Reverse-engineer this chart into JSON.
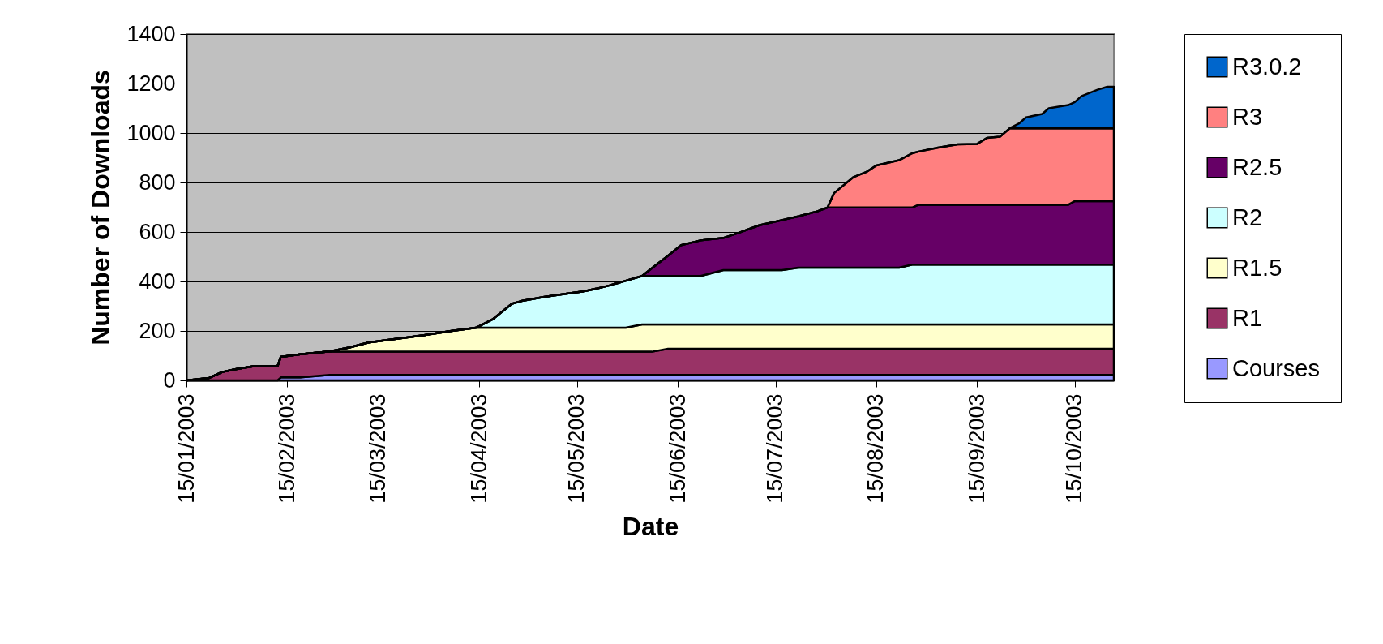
{
  "chart_data": {
    "type": "area",
    "stacked": true,
    "xlabel": "Date",
    "ylabel": "Number of Downloads",
    "ylim": [
      0,
      1400
    ],
    "yticks": [
      0,
      200,
      400,
      600,
      800,
      1000,
      1200,
      1400
    ],
    "xlim": [
      "2003-01-15",
      "2003-10-27"
    ],
    "xticks": [
      {
        "value": "2003-01-15",
        "label": "15/01/2003"
      },
      {
        "value": "2003-02-15",
        "label": "15/02/2003"
      },
      {
        "value": "2003-03-15",
        "label": "15/03/2003"
      },
      {
        "value": "2003-04-15",
        "label": "15/04/2003"
      },
      {
        "value": "2003-05-15",
        "label": "15/05/2003"
      },
      {
        "value": "2003-06-15",
        "label": "15/06/2003"
      },
      {
        "value": "2003-07-15",
        "label": "15/07/2003"
      },
      {
        "value": "2003-08-15",
        "label": "15/08/2003"
      },
      {
        "value": "2003-09-15",
        "label": "15/09/2003"
      },
      {
        "value": "2003-10-15",
        "label": "15/10/2003"
      }
    ],
    "grid": "y",
    "legend": "right",
    "x": [
      "2003-01-15",
      "2003-01-22",
      "2003-01-26",
      "2003-01-30",
      "2003-02-05",
      "2003-02-12",
      "2003-02-13",
      "2003-02-19",
      "2003-02-28",
      "2003-03-06",
      "2003-03-12",
      "2003-03-20",
      "2003-03-29",
      "2003-04-06",
      "2003-04-14",
      "2003-04-19",
      "2003-04-25",
      "2003-04-28",
      "2003-05-05",
      "2003-05-11",
      "2003-05-17",
      "2003-05-21",
      "2003-05-25",
      "2003-05-30",
      "2003-06-04",
      "2003-06-07",
      "2003-06-12",
      "2003-06-16",
      "2003-06-22",
      "2003-06-29",
      "2003-07-04",
      "2003-07-10",
      "2003-07-17",
      "2003-07-22",
      "2003-07-28",
      "2003-07-31",
      "2003-08-02",
      "2003-08-08",
      "2003-08-12",
      "2003-08-15",
      "2003-08-22",
      "2003-08-26",
      "2003-08-28",
      "2003-09-03",
      "2003-09-09",
      "2003-09-15",
      "2003-09-18",
      "2003-09-22",
      "2003-09-25",
      "2003-09-28",
      "2003-09-30",
      "2003-10-05",
      "2003-10-07",
      "2003-10-13",
      "2003-10-15",
      "2003-10-17",
      "2003-10-22",
      "2003-10-25",
      "2003-10-27"
    ],
    "series": [
      {
        "name": "Courses",
        "color": "#9999ff",
        "values": [
          0,
          0,
          0,
          0,
          0,
          0,
          12,
          12,
          22,
          22,
          22,
          22,
          22,
          22,
          22,
          22,
          22,
          22,
          22,
          22,
          22,
          22,
          22,
          22,
          22,
          22,
          22,
          22,
          22,
          22,
          22,
          22,
          22,
          22,
          22,
          22,
          22,
          22,
          22,
          22,
          22,
          22,
          22,
          22,
          22,
          22,
          22,
          22,
          22,
          22,
          22,
          22,
          22,
          22,
          22,
          22,
          22,
          22,
          22
        ]
      },
      {
        "name": "R1",
        "color": "#993366",
        "values": [
          0,
          10,
          34,
          45,
          58,
          58,
          83,
          94,
          95,
          94,
          94,
          94,
          94,
          94,
          94,
          94,
          94,
          94,
          94,
          94,
          94,
          94,
          94,
          94,
          94,
          94,
          106,
          106,
          106,
          106,
          106,
          106,
          106,
          106,
          106,
          106,
          106,
          106,
          106,
          106,
          106,
          106,
          106,
          106,
          106,
          106,
          106,
          106,
          106,
          106,
          106,
          106,
          106,
          106,
          106,
          106,
          106,
          106,
          106
        ]
      },
      {
        "name": "R1.5",
        "color": "#ffffcc",
        "values": [
          0,
          0,
          0,
          0,
          0,
          0,
          0,
          0,
          0,
          17,
          37,
          51,
          67,
          83,
          97,
          97,
          97,
          97,
          97,
          97,
          97,
          97,
          97,
          97,
          110,
          110,
          98,
          98,
          98,
          98,
          98,
          98,
          98,
          98,
          98,
          98,
          98,
          98,
          98,
          98,
          98,
          98,
          98,
          98,
          98,
          98,
          98,
          98,
          98,
          98,
          98,
          98,
          98,
          98,
          98,
          98,
          98,
          98,
          98
        ]
      },
      {
        "name": "R2",
        "color": "#ccffff",
        "values": [
          0,
          0,
          0,
          0,
          0,
          0,
          0,
          0,
          0,
          0,
          0,
          0,
          0,
          0,
          0,
          33,
          97,
          108,
          125,
          136,
          147,
          158,
          171,
          190,
          196,
          196,
          196,
          196,
          196,
          220,
          220,
          220,
          220,
          230,
          230,
          230,
          230,
          230,
          230,
          230,
          230,
          242,
          242,
          242,
          242,
          242,
          242,
          242,
          242,
          242,
          242,
          242,
          242,
          242,
          242,
          242,
          242,
          242,
          242
        ]
      },
      {
        "name": "R2.5",
        "color": "#660066",
        "values": [
          0,
          0,
          0,
          0,
          0,
          0,
          0,
          0,
          0,
          0,
          0,
          0,
          0,
          0,
          0,
          0,
          0,
          0,
          0,
          0,
          0,
          0,
          0,
          0,
          0,
          31,
          82,
          125,
          144,
          130,
          152,
          181,
          202,
          207,
          228,
          243,
          243,
          243,
          243,
          243,
          243,
          231,
          242,
          242,
          242,
          242,
          242,
          242,
          242,
          242,
          242,
          242,
          242,
          242,
          257,
          257,
          257,
          257,
          257
        ]
      },
      {
        "name": "R3",
        "color": "#ff8080",
        "values": [
          0,
          0,
          0,
          0,
          0,
          0,
          0,
          0,
          0,
          0,
          0,
          0,
          0,
          0,
          0,
          0,
          0,
          0,
          0,
          0,
          0,
          0,
          0,
          0,
          0,
          0,
          0,
          0,
          0,
          0,
          0,
          0,
          0,
          0,
          0,
          0,
          58,
          123,
          144,
          170,
          191,
          219,
          215,
          231,
          244,
          246,
          270,
          275,
          309,
          309,
          309,
          309,
          309,
          309,
          294,
          294,
          294,
          294,
          294
        ]
      },
      {
        "name": "R3.0.2",
        "color": "#0066cc",
        "values": [
          0,
          0,
          0,
          0,
          0,
          0,
          0,
          0,
          0,
          0,
          0,
          0,
          0,
          0,
          0,
          0,
          0,
          0,
          0,
          0,
          0,
          0,
          0,
          0,
          0,
          0,
          0,
          0,
          0,
          0,
          0,
          0,
          0,
          0,
          0,
          0,
          0,
          0,
          0,
          0,
          0,
          0,
          0,
          0,
          0,
          0,
          0,
          0,
          0,
          21,
          44,
          58,
          81,
          94,
          106,
          130,
          156,
          168,
          168
        ]
      }
    ]
  }
}
